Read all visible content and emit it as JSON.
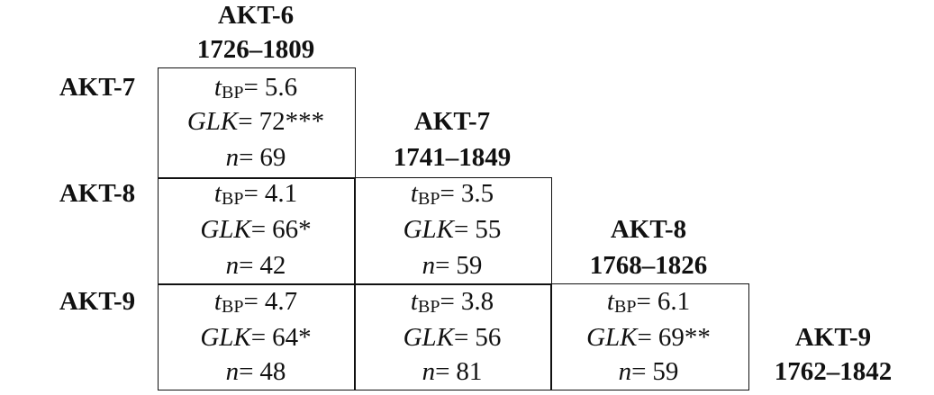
{
  "labels": {
    "t": "t",
    "bp": "BP",
    "eq": "=",
    "glk": "GLK",
    "n": "n"
  },
  "columns": [
    {
      "name": "AKT-6",
      "years": "1726–1809"
    },
    {
      "name": "AKT-7",
      "years": "1741–1849"
    },
    {
      "name": "AKT-8",
      "years": "1768–1826"
    },
    {
      "name": "AKT-9",
      "years": "1762–1842"
    }
  ],
  "rows": [
    {
      "label": "AKT-7",
      "cells": [
        {
          "t": 5.6,
          "glk": "72***",
          "n": 69
        }
      ]
    },
    {
      "label": "AKT-8",
      "cells": [
        {
          "t": 4.1,
          "glk": "66*",
          "n": 42
        },
        {
          "t": 3.5,
          "glk": "55",
          "n": 59
        }
      ]
    },
    {
      "label": "AKT-9",
      "cells": [
        {
          "t": 4.7,
          "glk": "64*",
          "n": 48
        },
        {
          "t": 3.8,
          "glk": "56",
          "n": 81
        },
        {
          "t": 6.1,
          "glk": "69**",
          "n": 59
        }
      ]
    }
  ]
}
